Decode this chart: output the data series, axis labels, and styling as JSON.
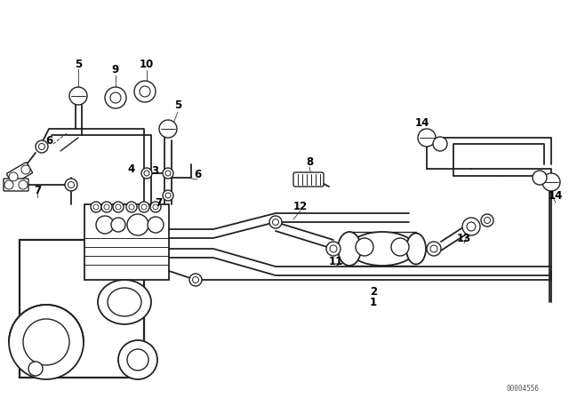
{
  "background_color": "#ffffff",
  "line_color": "#222222",
  "watermark": "00004556",
  "fig_width": 6.4,
  "fig_height": 4.48,
  "dpi": 100
}
